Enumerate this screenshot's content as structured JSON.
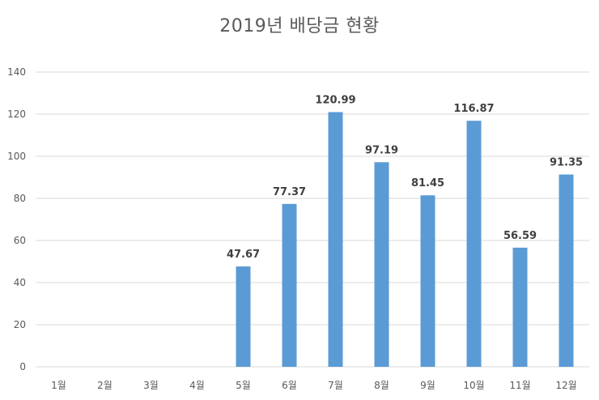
{
  "chart_data": {
    "type": "bar",
    "title": "2019년 배당금 현황",
    "categories": [
      "1월",
      "2월",
      "3월",
      "4월",
      "5월",
      "6월",
      "7월",
      "8월",
      "9월",
      "10월",
      "11월",
      "12월"
    ],
    "values": [
      null,
      null,
      null,
      null,
      47.67,
      77.37,
      120.99,
      97.19,
      81.45,
      116.87,
      56.59,
      91.35
    ],
    "data_labels": [
      "",
      "",
      "",
      "",
      "47.67",
      "77.37",
      "120.99",
      "97.19",
      "81.45",
      "116.87",
      "56.59",
      "91.35"
    ],
    "ylim": [
      0,
      140
    ],
    "yticks": [
      0,
      20,
      40,
      60,
      80,
      100,
      120,
      140
    ],
    "grid": true,
    "legend": "none",
    "bar_color": "#5B9BD5",
    "grid_color": "#D9D9D9"
  }
}
